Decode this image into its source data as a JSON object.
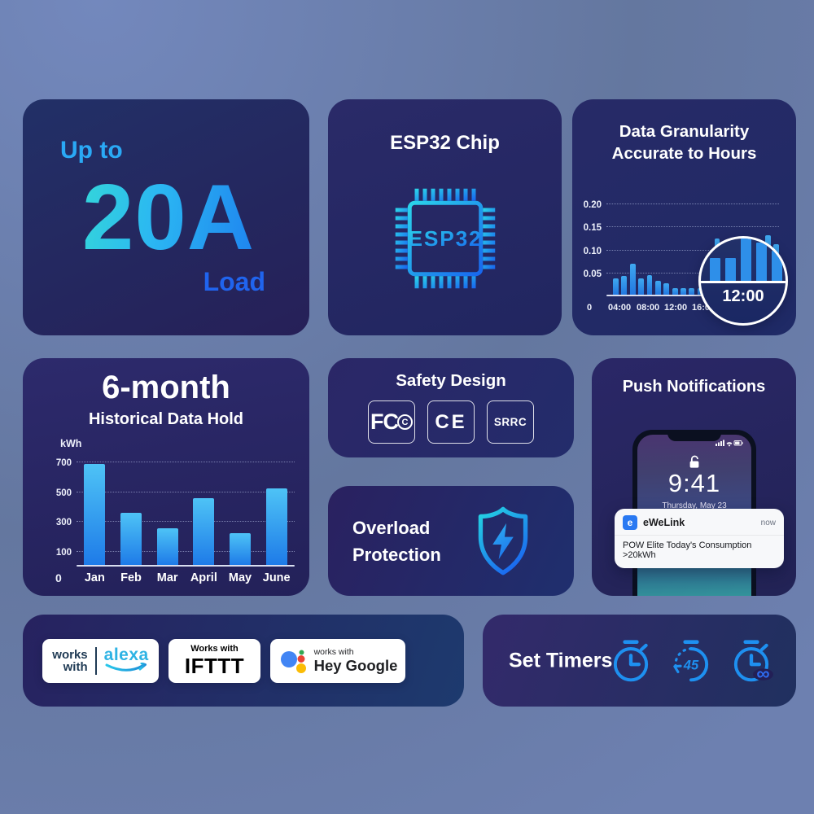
{
  "cards": {
    "load": {
      "prefix": "Up to",
      "value": "20A",
      "suffix": "Load"
    },
    "chip": {
      "title": "ESP32 Chip",
      "chip_label": "ESP32"
    },
    "granularity": {
      "title_line1": "Data Granularity",
      "title_line2": "Accurate to Hours",
      "magnifier_label": "12:00"
    },
    "history": {
      "title": "6-month",
      "subtitle": "Historical Data Hold",
      "unit_label": "kWh"
    },
    "safety": {
      "title": "Safety Design",
      "badge_fcc_main": "FC",
      "badge_fcc_circle": "C",
      "badge_ce": "CE",
      "badge_srrc": "SRRC"
    },
    "overload": {
      "line1": "Overload",
      "line2": "Protection"
    },
    "push": {
      "title": "Push Notifications",
      "time": "9:41",
      "date": "Thursday, May 23",
      "app_initial": "e",
      "app_name": "eWeLink",
      "timestamp": "now",
      "message": "POW Elite Today's Consumption >20kWh"
    },
    "works_with": {
      "alexa_line1": "works",
      "alexa_line2": "with",
      "alexa_brand": "alexa",
      "ifttt_label": "Works with",
      "ifttt_brand": "IFTTT",
      "google_label": "works with",
      "google_brand": "Hey Google"
    },
    "timers": {
      "title": "Set Timers",
      "countdown_value": "45"
    }
  },
  "chart_data": [
    {
      "id": "hourly",
      "type": "bar",
      "title": "Data Granularity Accurate to Hours",
      "ylim": [
        0,
        0.22
      ],
      "yticks": [
        0.05,
        0.1,
        0.15,
        0.2
      ],
      "ytick_labels": [
        "0.05",
        "0.10",
        "0.15",
        "0.20"
      ],
      "xticks": [
        "0",
        "04:00",
        "08:00",
        "12:00",
        "16:00"
      ],
      "values": [
        0.035,
        0.04,
        0.068,
        0.035,
        0.042,
        0.03,
        0.025,
        0.015,
        0.015,
        0.015,
        0.015,
        0.05,
        0.122,
        0.075,
        0.05,
        0.04,
        0.065,
        0.065,
        0.13,
        0.11
      ],
      "grid": true,
      "legend": false,
      "magnifier": {
        "label": "12:00",
        "values": [
          0.065,
          0.065,
          0.13,
          0.11,
          0.085
        ]
      }
    },
    {
      "id": "monthly",
      "type": "bar",
      "title": "6-month Historical Data Hold",
      "ylabel": "kWh",
      "ylim": [
        0,
        700
      ],
      "yticks": [
        100,
        300,
        500,
        700
      ],
      "ytick_labels": [
        "100",
        "300",
        "500",
        "700"
      ],
      "categories": [
        "Jan",
        "Feb",
        "Mar",
        "April",
        "May",
        "June"
      ],
      "values": [
        680,
        350,
        245,
        450,
        215,
        515
      ],
      "origin_label": "0",
      "grid": true,
      "legend": false
    }
  ]
}
